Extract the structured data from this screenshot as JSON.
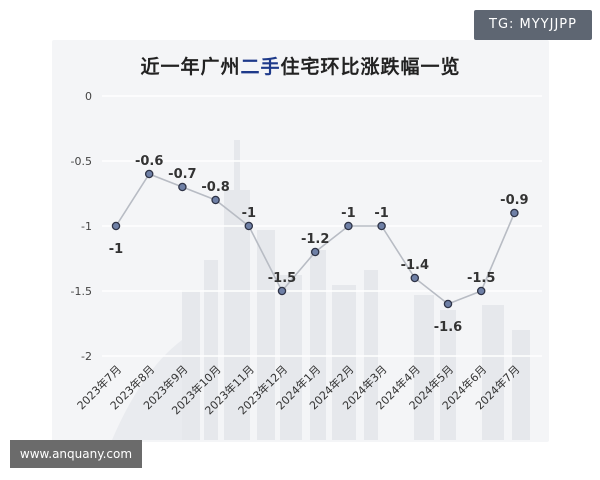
{
  "watermarks": {
    "tg": "TG: MYYJJPP",
    "site": "www.anquany.com"
  },
  "colors": {
    "line": "#b8bcc4",
    "marker_fill": "#6f80a6",
    "marker_stroke": "#2e3346",
    "title_highlight": "#1e3a8a",
    "grid": "#ffffff"
  },
  "chart_data": {
    "type": "line",
    "title_parts": [
      "近一年广州",
      "二手",
      "住宅环比涨跌幅一览"
    ],
    "xlabel": "",
    "ylabel": "",
    "ylim": [
      -2,
      0
    ],
    "yticks": [
      "0",
      "-0.5",
      "-1",
      "-1.5",
      "-2"
    ],
    "grid": true,
    "categories": [
      "2023年7月",
      "2023年8月",
      "2023年9月",
      "2023年10月",
      "2023年11月",
      "2023年12月",
      "2024年1月",
      "2024年2月",
      "2024年3月",
      "2024年4月",
      "2024年5月",
      "2024年6月",
      "2024年7月"
    ],
    "values": [
      -1,
      -0.6,
      -0.7,
      -0.8,
      -1,
      -1.5,
      -1.2,
      -1,
      -1,
      -1.4,
      -1.6,
      -1.5,
      -0.9
    ],
    "data_labels": [
      "-1",
      "-0.6",
      "-0.7",
      "-0.8",
      "-1",
      "-1.5",
      "-1.2",
      "-1",
      "-1",
      "-1.4",
      "-1.6",
      "-1.5",
      "-0.9"
    ]
  }
}
